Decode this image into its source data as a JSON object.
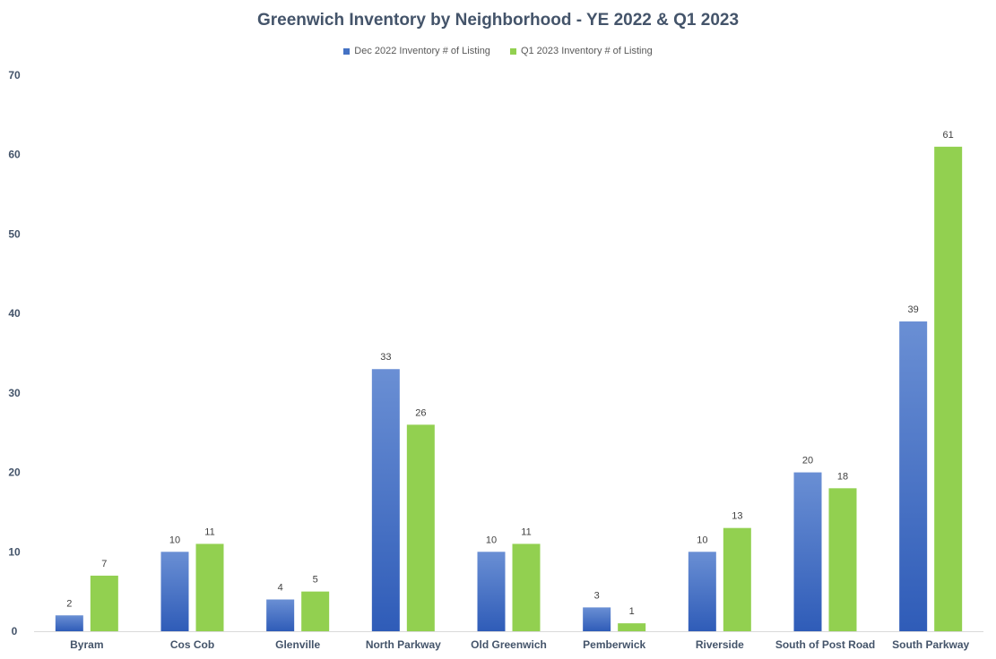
{
  "chart_data": {
    "type": "bar",
    "title": "Greenwich Inventory by Neighborhood  - YE 2022 & Q1 2023",
    "categories": [
      "Byram",
      "Cos Cob",
      "Glenville",
      "North Parkway",
      "Old Greenwich",
      "Pemberwick",
      "Riverside",
      "South of Post Road",
      "South Parkway"
    ],
    "series": [
      {
        "name": "Dec 2022 Inventory # of Listing",
        "values": [
          2,
          10,
          4,
          33,
          10,
          3,
          10,
          20,
          39
        ],
        "color": "#4472c4"
      },
      {
        "name": "Q1 2023 Inventory # of Listing",
        "values": [
          7,
          11,
          5,
          26,
          11,
          1,
          13,
          18,
          61
        ],
        "color": "#92d050"
      }
    ],
    "ylim": [
      0,
      70
    ],
    "yticks": [
      0,
      10,
      20,
      30,
      40,
      50,
      60,
      70
    ],
    "xlabel": "",
    "ylabel": "",
    "grid": false,
    "legend_position": "top",
    "data_labels": true
  }
}
